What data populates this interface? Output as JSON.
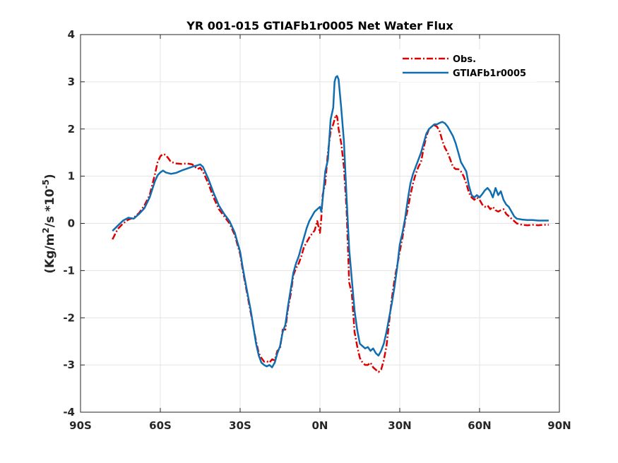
{
  "chart_data": {
    "type": "line",
    "title": "YR 001-015 GTIAFb1r0005  Net Water Flux",
    "ylabel_base": "(Kg/m",
    "ylabel_sup1": "2",
    "ylabel_mid": "/s *10",
    "ylabel_sup2": "-5",
    "ylabel_end": ")",
    "xlim": [
      -90,
      90
    ],
    "ylim": [
      -4,
      4
    ],
    "grid": true,
    "legend_position": "top-right",
    "x_ticks": [
      {
        "value": -90,
        "label": "90S"
      },
      {
        "value": -60,
        "label": "60S"
      },
      {
        "value": -30,
        "label": "30S"
      },
      {
        "value": 0,
        "label": "0N"
      },
      {
        "value": 30,
        "label": "30N"
      },
      {
        "value": 60,
        "label": "60N"
      },
      {
        "value": 90,
        "label": "90N"
      }
    ],
    "y_ticks": [
      {
        "value": 4,
        "label": "4"
      },
      {
        "value": 3,
        "label": "3"
      },
      {
        "value": 2,
        "label": "2"
      },
      {
        "value": 1,
        "label": "1"
      },
      {
        "value": 0,
        "label": "0"
      },
      {
        "value": -1,
        "label": "-1"
      },
      {
        "value": -2,
        "label": "-2"
      },
      {
        "value": -3,
        "label": "-3"
      },
      {
        "value": -4,
        "label": "-4"
      }
    ],
    "series": [
      {
        "name": "Obs.",
        "color": "#dd0000",
        "dash": "dashdot",
        "points": [
          [
            -78,
            -0.34
          ],
          [
            -76,
            -0.12
          ],
          [
            -74,
            0.0
          ],
          [
            -72,
            0.08
          ],
          [
            -70,
            0.12
          ],
          [
            -68,
            0.22
          ],
          [
            -66,
            0.38
          ],
          [
            -64,
            0.6
          ],
          [
            -62,
            1.05
          ],
          [
            -61,
            1.3
          ],
          [
            -60,
            1.42
          ],
          [
            -59,
            1.47
          ],
          [
            -58,
            1.45
          ],
          [
            -57,
            1.38
          ],
          [
            -56,
            1.3
          ],
          [
            -54,
            1.27
          ],
          [
            -52,
            1.26
          ],
          [
            -50,
            1.27
          ],
          [
            -48,
            1.25
          ],
          [
            -46,
            1.15
          ],
          [
            -45,
            1.18
          ],
          [
            -44,
            1.1
          ],
          [
            -42,
            0.85
          ],
          [
            -40,
            0.55
          ],
          [
            -38,
            0.3
          ],
          [
            -36,
            0.15
          ],
          [
            -34,
            0.0
          ],
          [
            -32,
            -0.25
          ],
          [
            -31,
            -0.45
          ],
          [
            -30,
            -0.65
          ],
          [
            -29,
            -1.0
          ],
          [
            -28,
            -1.3
          ],
          [
            -27,
            -1.6
          ],
          [
            -26,
            -1.9
          ],
          [
            -25,
            -2.2
          ],
          [
            -24,
            -2.5
          ],
          [
            -23,
            -2.75
          ],
          [
            -22,
            -2.85
          ],
          [
            -21,
            -2.93
          ],
          [
            -20,
            -2.92
          ],
          [
            -19,
            -2.95
          ],
          [
            -18,
            -2.88
          ],
          [
            -17,
            -2.9
          ],
          [
            -16,
            -2.7
          ],
          [
            -15,
            -2.65
          ],
          [
            -14,
            -2.25
          ],
          [
            -13,
            -2.25
          ],
          [
            -12,
            -1.8
          ],
          [
            -11,
            -1.5
          ],
          [
            -10,
            -1.1
          ],
          [
            -9,
            -0.95
          ],
          [
            -8,
            -0.85
          ],
          [
            -7,
            -0.7
          ],
          [
            -6,
            -0.5
          ],
          [
            -5,
            -0.4
          ],
          [
            -4,
            -0.3
          ],
          [
            -3,
            -0.22
          ],
          [
            -2,
            -0.15
          ],
          [
            -1,
            0.05
          ],
          [
            0,
            -0.2
          ],
          [
            0.5,
            0.1
          ],
          [
            1,
            0.6
          ],
          [
            2,
            0.85
          ],
          [
            3,
            1.5
          ],
          [
            4,
            1.95
          ],
          [
            5,
            2.1
          ],
          [
            6,
            2.3
          ],
          [
            6.5,
            2.25
          ],
          [
            7,
            2.0
          ],
          [
            8,
            1.7
          ],
          [
            9,
            1.2
          ],
          [
            10,
            0.3
          ],
          [
            11,
            -1.25
          ],
          [
            12,
            -1.5
          ],
          [
            13,
            -2.3
          ],
          [
            14,
            -2.6
          ],
          [
            15,
            -2.85
          ],
          [
            16,
            -2.95
          ],
          [
            17,
            -3.0
          ],
          [
            18,
            -3.0
          ],
          [
            19,
            -2.95
          ],
          [
            20,
            -3.05
          ],
          [
            21,
            -3.1
          ],
          [
            22,
            -3.15
          ],
          [
            23,
            -3.1
          ],
          [
            24,
            -2.9
          ],
          [
            25,
            -2.6
          ],
          [
            26,
            -2.1
          ],
          [
            27,
            -1.6
          ],
          [
            28,
            -1.2
          ],
          [
            29,
            -0.9
          ],
          [
            30,
            -0.6
          ],
          [
            31,
            -0.3
          ],
          [
            32,
            0.05
          ],
          [
            33,
            0.3
          ],
          [
            34,
            0.6
          ],
          [
            35,
            0.85
          ],
          [
            36,
            1.05
          ],
          [
            37,
            1.2
          ],
          [
            38,
            1.3
          ],
          [
            39,
            1.6
          ],
          [
            40,
            1.85
          ],
          [
            41,
            2.0
          ],
          [
            42,
            2.05
          ],
          [
            43,
            2.08
          ],
          [
            44,
            2.05
          ],
          [
            45,
            1.95
          ],
          [
            46,
            1.75
          ],
          [
            47,
            1.6
          ],
          [
            48,
            1.5
          ],
          [
            49,
            1.35
          ],
          [
            50,
            1.2
          ],
          [
            51,
            1.15
          ],
          [
            52,
            1.15
          ],
          [
            53,
            1.1
          ],
          [
            54,
            1.0
          ],
          [
            55,
            0.85
          ],
          [
            56,
            0.65
          ],
          [
            57,
            0.55
          ],
          [
            58,
            0.5
          ],
          [
            59,
            0.55
          ],
          [
            60,
            0.5
          ],
          [
            61,
            0.4
          ],
          [
            62,
            0.35
          ],
          [
            63,
            0.38
          ],
          [
            64,
            0.3
          ],
          [
            65,
            0.35
          ],
          [
            66,
            0.28
          ],
          [
            67,
            0.25
          ],
          [
            68,
            0.28
          ],
          [
            69,
            0.3
          ],
          [
            70,
            0.2
          ],
          [
            72,
            0.1
          ],
          [
            74,
            0.0
          ],
          [
            76,
            -0.03
          ],
          [
            78,
            -0.04
          ],
          [
            80,
            -0.03
          ],
          [
            82,
            -0.04
          ],
          [
            84,
            -0.03
          ],
          [
            86,
            -0.03
          ]
        ]
      },
      {
        "name": "GTIAFb1r0005",
        "color": "#0f6db0",
        "dash": "solid",
        "points": [
          [
            -78,
            -0.16
          ],
          [
            -76,
            -0.05
          ],
          [
            -74,
            0.06
          ],
          [
            -72,
            0.12
          ],
          [
            -70,
            0.1
          ],
          [
            -68,
            0.2
          ],
          [
            -66,
            0.32
          ],
          [
            -64,
            0.55
          ],
          [
            -62,
            0.9
          ],
          [
            -61,
            1.02
          ],
          [
            -60,
            1.08
          ],
          [
            -59,
            1.12
          ],
          [
            -58,
            1.08
          ],
          [
            -56,
            1.05
          ],
          [
            -54,
            1.07
          ],
          [
            -52,
            1.12
          ],
          [
            -50,
            1.16
          ],
          [
            -48,
            1.2
          ],
          [
            -46,
            1.23
          ],
          [
            -45,
            1.25
          ],
          [
            -44,
            1.2
          ],
          [
            -42,
            0.95
          ],
          [
            -40,
            0.65
          ],
          [
            -38,
            0.38
          ],
          [
            -36,
            0.2
          ],
          [
            -34,
            0.05
          ],
          [
            -32,
            -0.2
          ],
          [
            -31,
            -0.4
          ],
          [
            -30,
            -0.6
          ],
          [
            -29,
            -0.95
          ],
          [
            -28,
            -1.25
          ],
          [
            -27,
            -1.55
          ],
          [
            -26,
            -1.85
          ],
          [
            -25,
            -2.2
          ],
          [
            -24,
            -2.55
          ],
          [
            -23,
            -2.8
          ],
          [
            -22,
            -2.95
          ],
          [
            -21,
            -3.0
          ],
          [
            -20,
            -3.03
          ],
          [
            -19,
            -3.0
          ],
          [
            -18,
            -3.05
          ],
          [
            -17,
            -2.95
          ],
          [
            -16,
            -2.75
          ],
          [
            -15,
            -2.6
          ],
          [
            -14,
            -2.3
          ],
          [
            -13,
            -2.15
          ],
          [
            -12,
            -1.75
          ],
          [
            -11,
            -1.4
          ],
          [
            -10,
            -1.05
          ],
          [
            -9,
            -0.85
          ],
          [
            -8,
            -0.7
          ],
          [
            -7,
            -0.5
          ],
          [
            -6,
            -0.3
          ],
          [
            -5,
            -0.1
          ],
          [
            -4,
            0.05
          ],
          [
            -3,
            0.15
          ],
          [
            -2,
            0.25
          ],
          [
            -1,
            0.3
          ],
          [
            0,
            0.35
          ],
          [
            0.5,
            0.25
          ],
          [
            1,
            0.5
          ],
          [
            2,
            1.1
          ],
          [
            3,
            1.35
          ],
          [
            4,
            2.2
          ],
          [
            5,
            2.45
          ],
          [
            5.5,
            3.0
          ],
          [
            6,
            3.1
          ],
          [
            6.5,
            3.12
          ],
          [
            7,
            3.05
          ],
          [
            8,
            2.45
          ],
          [
            9,
            1.75
          ],
          [
            10,
            0.55
          ],
          [
            11,
            -0.55
          ],
          [
            12,
            -1.2
          ],
          [
            13,
            -1.85
          ],
          [
            14,
            -2.25
          ],
          [
            15,
            -2.55
          ],
          [
            16,
            -2.6
          ],
          [
            17,
            -2.65
          ],
          [
            18,
            -2.62
          ],
          [
            19,
            -2.7
          ],
          [
            20,
            -2.65
          ],
          [
            21,
            -2.75
          ],
          [
            22,
            -2.8
          ],
          [
            23,
            -2.7
          ],
          [
            24,
            -2.55
          ],
          [
            25,
            -2.3
          ],
          [
            26,
            -2.0
          ],
          [
            27,
            -1.7
          ],
          [
            28,
            -1.35
          ],
          [
            29,
            -0.95
          ],
          [
            30,
            -0.45
          ],
          [
            31,
            -0.2
          ],
          [
            32,
            0.1
          ],
          [
            33,
            0.5
          ],
          [
            34,
            0.85
          ],
          [
            35,
            1.05
          ],
          [
            36,
            1.2
          ],
          [
            37,
            1.35
          ],
          [
            38,
            1.5
          ],
          [
            39,
            1.7
          ],
          [
            40,
            1.9
          ],
          [
            41,
            2.0
          ],
          [
            42,
            2.05
          ],
          [
            43,
            2.1
          ],
          [
            44,
            2.1
          ],
          [
            45,
            2.13
          ],
          [
            46,
            2.15
          ],
          [
            47,
            2.12
          ],
          [
            48,
            2.05
          ],
          [
            49,
            1.95
          ],
          [
            50,
            1.85
          ],
          [
            51,
            1.7
          ],
          [
            52,
            1.5
          ],
          [
            53,
            1.3
          ],
          [
            54,
            1.2
          ],
          [
            55,
            1.1
          ],
          [
            56,
            0.8
          ],
          [
            57,
            0.6
          ],
          [
            58,
            0.55
          ],
          [
            59,
            0.6
          ],
          [
            60,
            0.55
          ],
          [
            61,
            0.62
          ],
          [
            62,
            0.7
          ],
          [
            63,
            0.75
          ],
          [
            64,
            0.68
          ],
          [
            65,
            0.55
          ],
          [
            66,
            0.75
          ],
          [
            67,
            0.6
          ],
          [
            68,
            0.68
          ],
          [
            69,
            0.5
          ],
          [
            70,
            0.4
          ],
          [
            71,
            0.35
          ],
          [
            72,
            0.25
          ],
          [
            73,
            0.15
          ],
          [
            74,
            0.1
          ],
          [
            76,
            0.08
          ],
          [
            78,
            0.07
          ],
          [
            80,
            0.07
          ],
          [
            82,
            0.06
          ],
          [
            84,
            0.06
          ],
          [
            86,
            0.06
          ]
        ]
      }
    ]
  }
}
